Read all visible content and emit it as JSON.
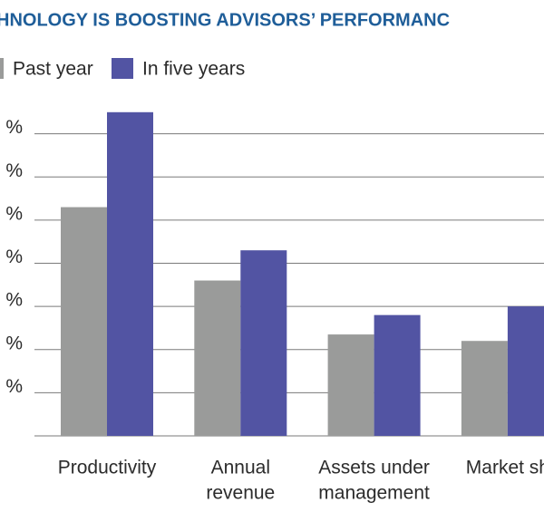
{
  "chart_data": {
    "type": "bar",
    "title": "HNOLOGY IS BOOSTING ADVISORS’ PERFORMANC",
    "categories": [
      [
        "Productivity"
      ],
      [
        "Annual",
        "revenue"
      ],
      [
        "Assets under",
        "management"
      ],
      [
        "Market sh"
      ]
    ],
    "series": [
      {
        "name": "Past year",
        "color": "#9a9b9a",
        "values": [
          53,
          36,
          23.5,
          22
        ]
      },
      {
        "name": "In five years",
        "color": "#5254a3",
        "values": [
          75,
          43,
          28,
          30
        ]
      }
    ],
    "ylim": [
      0,
      80
    ],
    "yticks": [
      {
        "value": 10,
        "label": "%"
      },
      {
        "value": 20,
        "label": "%"
      },
      {
        "value": 30,
        "label": "%"
      },
      {
        "value": 40,
        "label": "%"
      },
      {
        "value": 50,
        "label": "%"
      },
      {
        "value": 60,
        "label": "%"
      },
      {
        "value": 70,
        "label": "%"
      }
    ],
    "grid": true
  }
}
